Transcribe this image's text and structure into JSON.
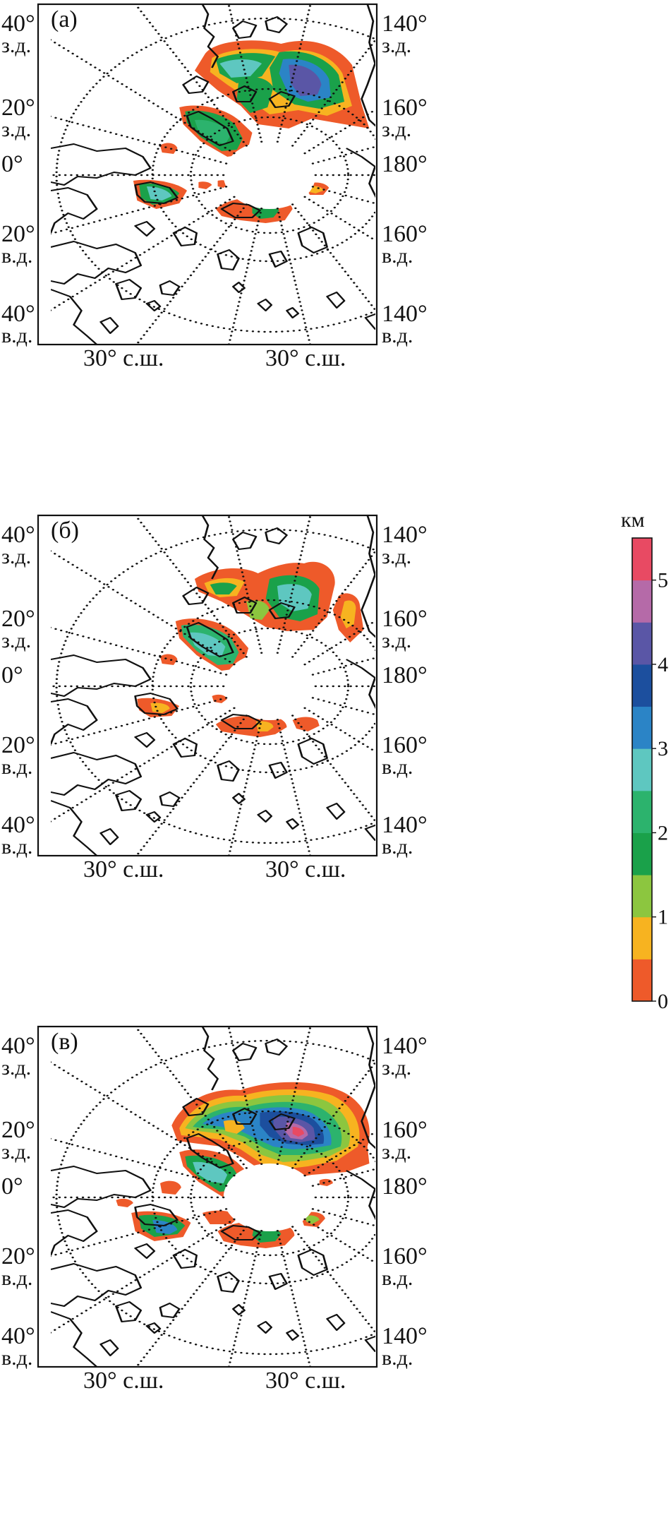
{
  "panels": [
    {
      "id": "a",
      "label": "(а)"
    },
    {
      "id": "b",
      "label": "(б)"
    },
    {
      "id": "c",
      "label": "(в)"
    }
  ],
  "map_labels": {
    "left": [
      {
        "deg": "40°",
        "dir": "з.д."
      },
      {
        "deg": "20°",
        "dir": "з.д."
      },
      {
        "deg": "0°",
        "dir": ""
      },
      {
        "deg": "20°",
        "dir": "в.д."
      },
      {
        "deg": "40°",
        "dir": "в.д."
      }
    ],
    "right": [
      {
        "deg": "140°",
        "dir": "з.д."
      },
      {
        "deg": "160°",
        "dir": "з.д."
      },
      {
        "deg": "180°",
        "dir": ""
      },
      {
        "deg": "160°",
        "dir": "в.д."
      },
      {
        "deg": "140°",
        "dir": "в.д."
      }
    ],
    "bottom": [
      "30° с.ш.",
      "30° с.ш."
    ]
  },
  "legend": {
    "unit": "км",
    "ticks": [
      "0",
      "1",
      "2",
      "3",
      "4",
      "5"
    ],
    "range": [
      0,
      5.5
    ],
    "colors": [
      "#ee5a2a",
      "#f7b320",
      "#8cc63f",
      "#1aa14a",
      "#2cb36d",
      "#5ec7c0",
      "#2b84c6",
      "#1c4f9e",
      "#5a56a6",
      "#b56aa8",
      "#e84a63"
    ]
  }
}
